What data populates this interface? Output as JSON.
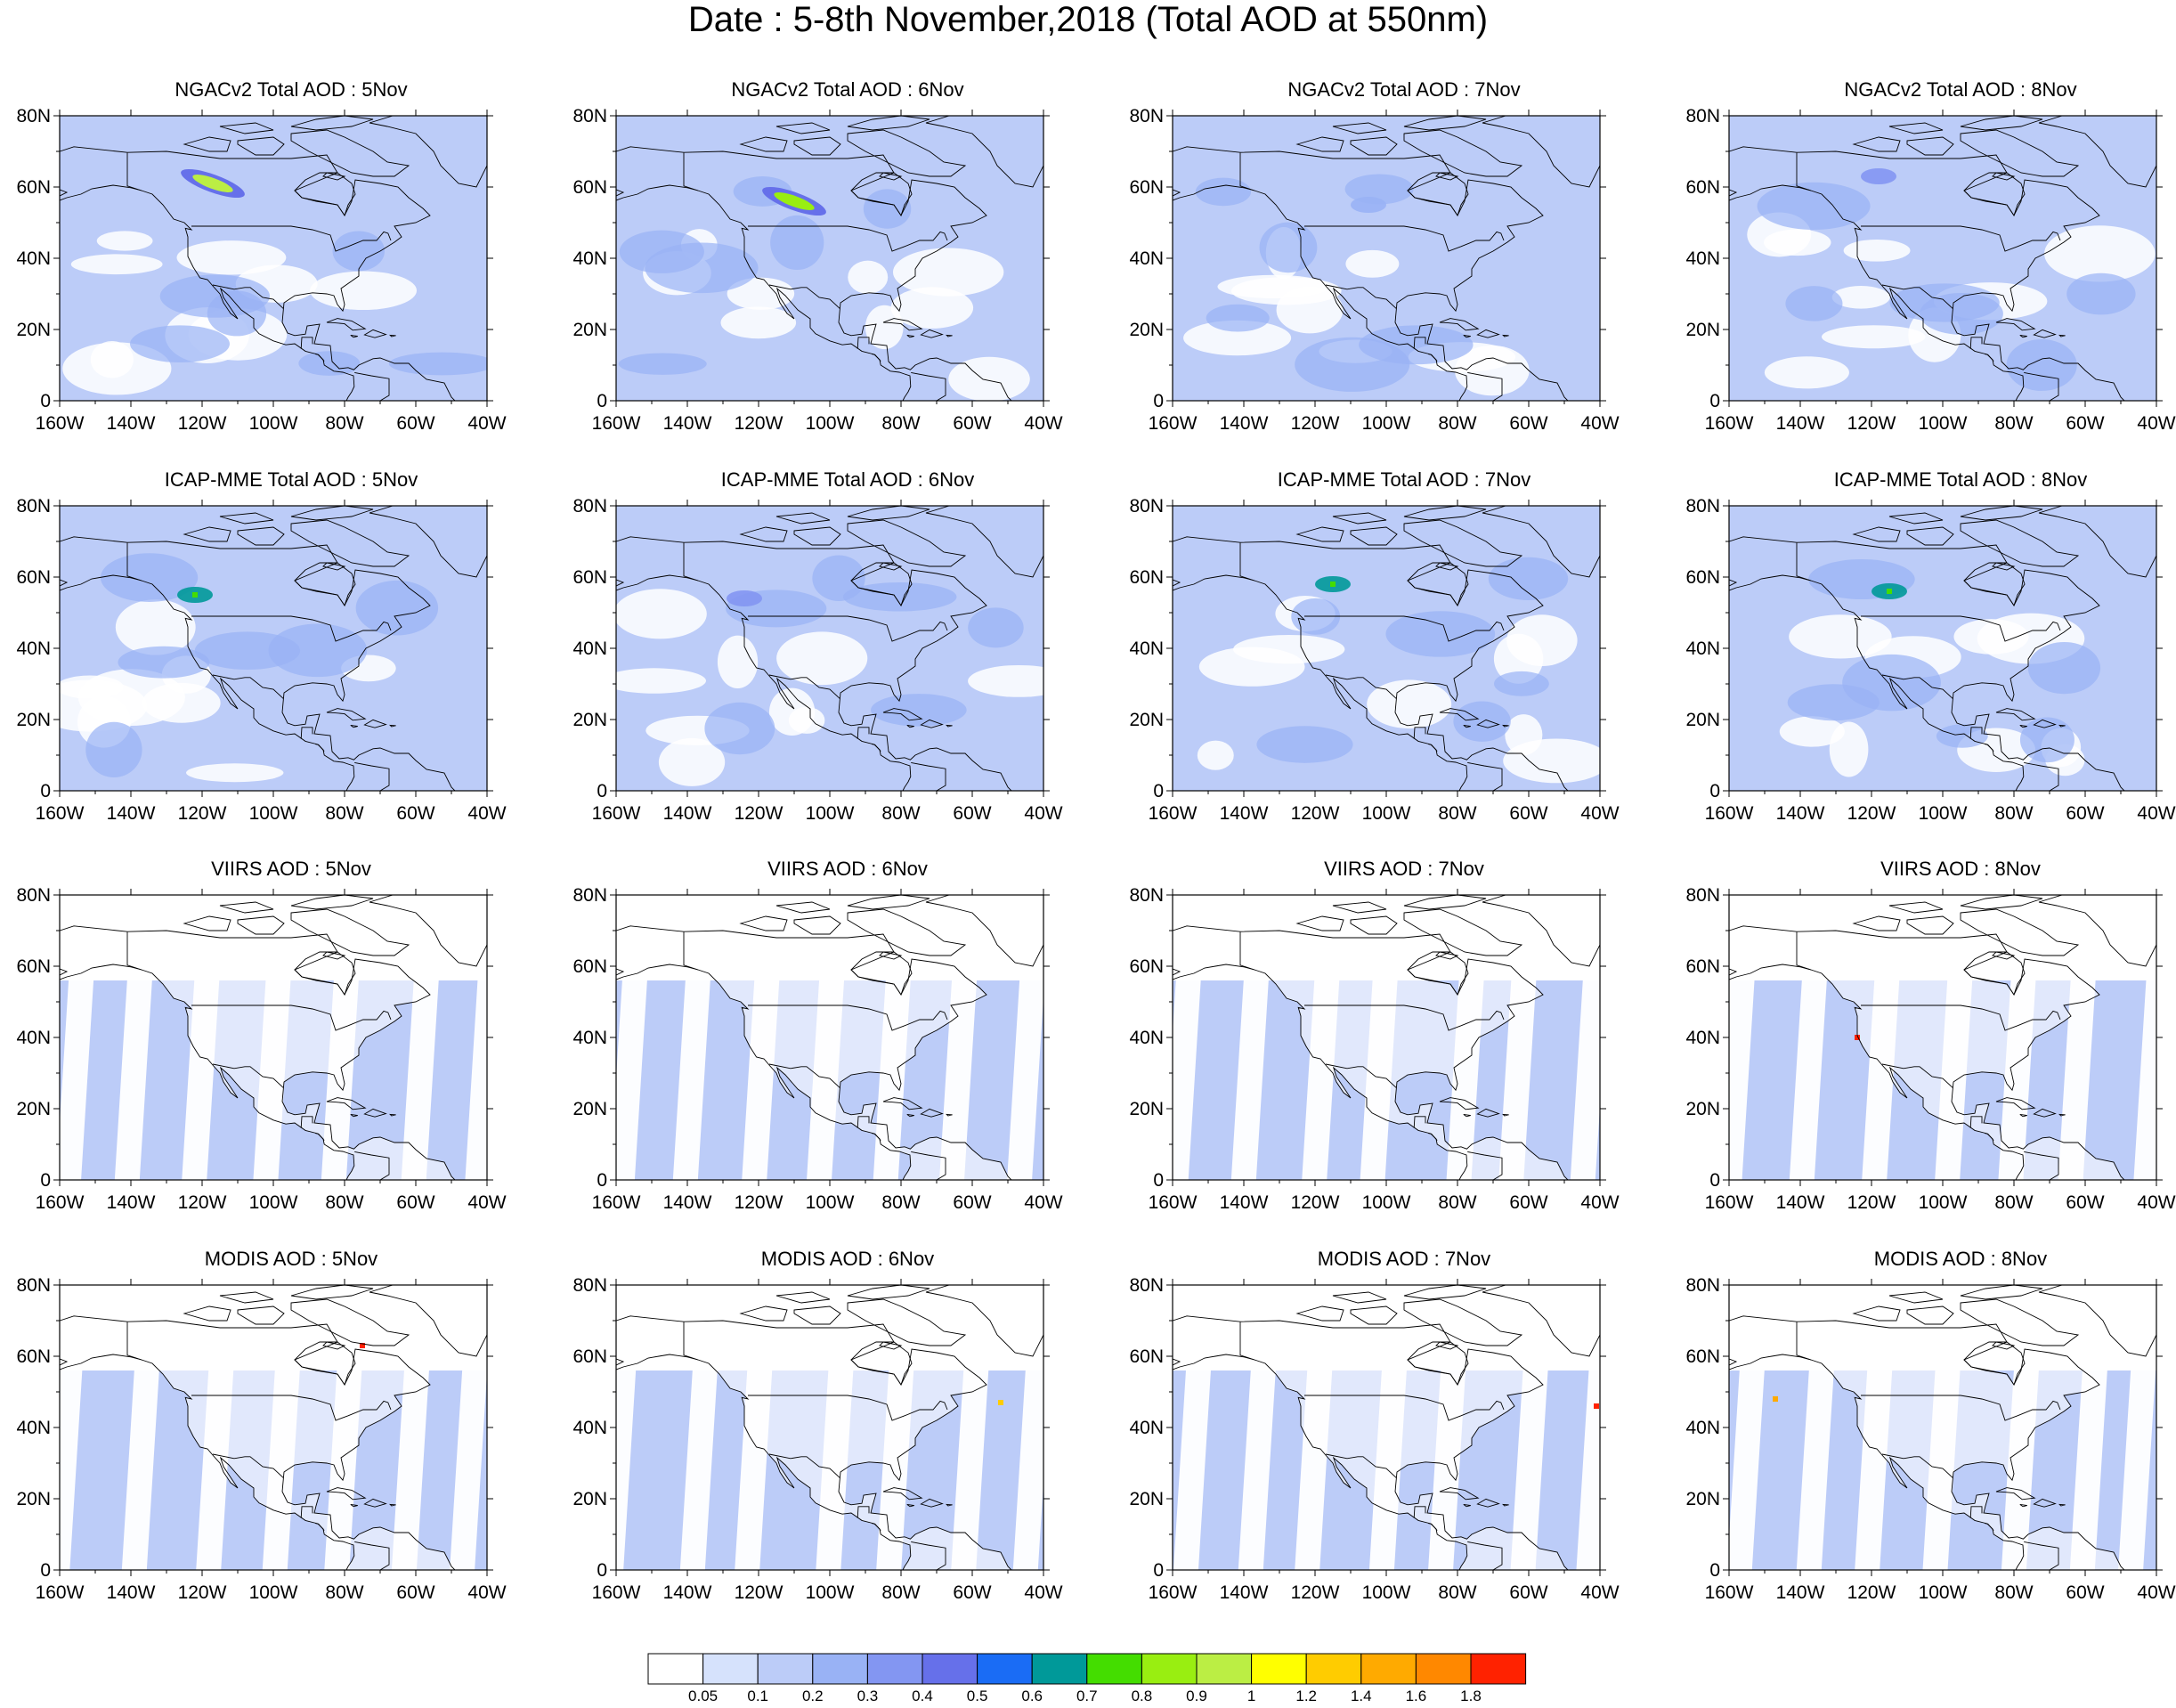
{
  "title": "Date : 5-8th November,2018 (Total AOD at 550nm)",
  "colors": {
    "levels": [
      "#ffffff",
      "#d6e2fc",
      "#bcccf8",
      "#99b2f5",
      "#8396f2",
      "#6670ea",
      "#1a6cf5",
      "#009999",
      "#44dd00",
      "#99ee11",
      "#bbee44",
      "#ffff00",
      "#ffcc00",
      "#ffaa00",
      "#ff8800",
      "#ff2200"
    ],
    "land_outline": "#000000"
  },
  "chart_data": [
    {
      "type": "heatmap",
      "title": "NGACv2 Total AOD : 5Nov",
      "x_ticks": [
        "160W",
        "140W",
        "120W",
        "100W",
        "80W",
        "60W",
        "40W"
      ],
      "y_ticks": [
        "0",
        "20N",
        "40N",
        "60N",
        "80N"
      ],
      "xlim": [
        -160,
        -40
      ],
      "ylim": [
        0,
        80
      ],
      "plumes": [
        {
          "lon": -117,
          "lat": 61,
          "aod": 0.9
        }
      ],
      "background_aod": 0.1,
      "stripes": false
    },
    {
      "type": "heatmap",
      "title": "NGACv2 Total AOD : 6Nov",
      "x_ticks": [
        "160W",
        "140W",
        "120W",
        "100W",
        "80W",
        "60W",
        "40W"
      ],
      "y_ticks": [
        "0",
        "20N",
        "40N",
        "60N",
        "80N"
      ],
      "xlim": [
        -160,
        -40
      ],
      "ylim": [
        0,
        80
      ],
      "plumes": [
        {
          "lon": -110,
          "lat": 56,
          "aod": 0.8
        }
      ],
      "background_aod": 0.1,
      "stripes": false
    },
    {
      "type": "heatmap",
      "title": "NGACv2 Total AOD : 7Nov",
      "x_ticks": [
        "160W",
        "140W",
        "120W",
        "100W",
        "80W",
        "60W",
        "40W"
      ],
      "y_ticks": [
        "0",
        "20N",
        "40N",
        "60N",
        "80N"
      ],
      "xlim": [
        -160,
        -40
      ],
      "ylim": [
        0,
        80
      ],
      "plumes": [
        {
          "lon": -105,
          "lat": 55,
          "aod": 0.2
        }
      ],
      "background_aod": 0.1,
      "stripes": false
    },
    {
      "type": "heatmap",
      "title": "NGACv2 Total AOD : 8Nov",
      "x_ticks": [
        "160W",
        "140W",
        "120W",
        "100W",
        "80W",
        "60W",
        "40W"
      ],
      "y_ticks": [
        "0",
        "20N",
        "40N",
        "60N",
        "80N"
      ],
      "xlim": [
        -160,
        -40
      ],
      "ylim": [
        0,
        80
      ],
      "plumes": [
        {
          "lon": -118,
          "lat": 63,
          "aod": 0.3
        }
      ],
      "background_aod": 0.1,
      "stripes": false
    },
    {
      "type": "heatmap",
      "title": "ICAP-MME Total AOD : 5Nov",
      "x_ticks": [
        "160W",
        "140W",
        "120W",
        "100W",
        "80W",
        "60W",
        "40W"
      ],
      "y_ticks": [
        "0",
        "20N",
        "40N",
        "60N",
        "80N"
      ],
      "xlim": [
        -160,
        -40
      ],
      "ylim": [
        0,
        80
      ],
      "plumes": [
        {
          "lon": -122,
          "lat": 55,
          "aod": 0.6
        }
      ],
      "background_aod": 0.1,
      "stripes": false
    },
    {
      "type": "heatmap",
      "title": "ICAP-MME Total AOD : 6Nov",
      "x_ticks": [
        "160W",
        "140W",
        "120W",
        "100W",
        "80W",
        "60W",
        "40W"
      ],
      "y_ticks": [
        "0",
        "20N",
        "40N",
        "60N",
        "80N"
      ],
      "xlim": [
        -160,
        -40
      ],
      "ylim": [
        0,
        80
      ],
      "plumes": [
        {
          "lon": -124,
          "lat": 54,
          "aod": 0.3
        }
      ],
      "background_aod": 0.1,
      "stripes": false
    },
    {
      "type": "heatmap",
      "title": "ICAP-MME Total AOD : 7Nov",
      "x_ticks": [
        "160W",
        "140W",
        "120W",
        "100W",
        "80W",
        "60W",
        "40W"
      ],
      "y_ticks": [
        "0",
        "20N",
        "40N",
        "60N",
        "80N"
      ],
      "xlim": [
        -160,
        -40
      ],
      "ylim": [
        0,
        80
      ],
      "plumes": [
        {
          "lon": -115,
          "lat": 58,
          "aod": 0.6
        }
      ],
      "background_aod": 0.1,
      "stripes": false
    },
    {
      "type": "heatmap",
      "title": "ICAP-MME Total AOD : 8Nov",
      "x_ticks": [
        "160W",
        "140W",
        "120W",
        "100W",
        "80W",
        "60W",
        "40W"
      ],
      "y_ticks": [
        "0",
        "20N",
        "40N",
        "60N",
        "80N"
      ],
      "xlim": [
        -160,
        -40
      ],
      "ylim": [
        0,
        80
      ],
      "plumes": [
        {
          "lon": -115,
          "lat": 56,
          "aod": 0.6
        }
      ],
      "background_aod": 0.1,
      "stripes": false
    },
    {
      "type": "heatmap",
      "title": "VIIRS AOD : 5Nov",
      "x_ticks": [
        "160W",
        "140W",
        "120W",
        "100W",
        "80W",
        "60W",
        "40W"
      ],
      "y_ticks": [
        "0",
        "20N",
        "40N",
        "60N",
        "80N"
      ],
      "xlim": [
        -160,
        -40
      ],
      "ylim": [
        0,
        80
      ],
      "plumes": [],
      "background_aod": 0.1,
      "stripes": true
    },
    {
      "type": "heatmap",
      "title": "VIIRS AOD : 6Nov",
      "x_ticks": [
        "160W",
        "140W",
        "120W",
        "100W",
        "80W",
        "60W",
        "40W"
      ],
      "y_ticks": [
        "0",
        "20N",
        "40N",
        "60N",
        "80N"
      ],
      "xlim": [
        -160,
        -40
      ],
      "ylim": [
        0,
        80
      ],
      "plumes": [],
      "background_aod": 0.1,
      "stripes": true
    },
    {
      "type": "heatmap",
      "title": "VIIRS AOD : 7Nov",
      "x_ticks": [
        "160W",
        "140W",
        "120W",
        "100W",
        "80W",
        "60W",
        "40W"
      ],
      "y_ticks": [
        "0",
        "20N",
        "40N",
        "60N",
        "80N"
      ],
      "xlim": [
        -160,
        -40
      ],
      "ylim": [
        0,
        80
      ],
      "plumes": [],
      "background_aod": 0.1,
      "stripes": true
    },
    {
      "type": "heatmap",
      "title": "VIIRS AOD : 8Nov",
      "x_ticks": [
        "160W",
        "140W",
        "120W",
        "100W",
        "80W",
        "60W",
        "40W"
      ],
      "y_ticks": [
        "0",
        "20N",
        "40N",
        "60N",
        "80N"
      ],
      "xlim": [
        -160,
        -40
      ],
      "ylim": [
        0,
        80
      ],
      "plumes": [
        {
          "lon": -124,
          "lat": 40,
          "aod": 1.8
        }
      ],
      "background_aod": 0.1,
      "stripes": true
    },
    {
      "type": "heatmap",
      "title": "MODIS AOD : 5Nov",
      "x_ticks": [
        "160W",
        "140W",
        "120W",
        "100W",
        "80W",
        "60W",
        "40W"
      ],
      "y_ticks": [
        "0",
        "20N",
        "40N",
        "60N",
        "80N"
      ],
      "xlim": [
        -160,
        -40
      ],
      "ylim": [
        0,
        80
      ],
      "plumes": [
        {
          "lon": -75,
          "lat": 63,
          "aod": 1.8
        }
      ],
      "background_aod": 0.1,
      "stripes": true
    },
    {
      "type": "heatmap",
      "title": "MODIS AOD : 6Nov",
      "x_ticks": [
        "160W",
        "140W",
        "120W",
        "100W",
        "80W",
        "60W",
        "40W"
      ],
      "y_ticks": [
        "0",
        "20N",
        "40N",
        "60N",
        "80N"
      ],
      "xlim": [
        -160,
        -40
      ],
      "ylim": [
        0,
        80
      ],
      "plumes": [
        {
          "lon": -52,
          "lat": 47,
          "aod": 1.2
        }
      ],
      "background_aod": 0.1,
      "stripes": true
    },
    {
      "type": "heatmap",
      "title": "MODIS AOD : 7Nov",
      "x_ticks": [
        "160W",
        "140W",
        "120W",
        "100W",
        "80W",
        "60W",
        "40W"
      ],
      "y_ticks": [
        "0",
        "20N",
        "40N",
        "60N",
        "80N"
      ],
      "xlim": [
        -160,
        -40
      ],
      "ylim": [
        0,
        80
      ],
      "plumes": [
        {
          "lon": -41,
          "lat": 46,
          "aod": 1.8
        }
      ],
      "background_aod": 0.1,
      "stripes": true
    },
    {
      "type": "heatmap",
      "title": "MODIS AOD : 8Nov",
      "x_ticks": [
        "160W",
        "140W",
        "120W",
        "100W",
        "80W",
        "60W",
        "40W"
      ],
      "y_ticks": [
        "0",
        "20N",
        "40N",
        "60N",
        "80N"
      ],
      "xlim": [
        -160,
        -40
      ],
      "ylim": [
        0,
        80
      ],
      "plumes": [
        {
          "lon": -147,
          "lat": 48,
          "aod": 1.4
        }
      ],
      "background_aod": 0.1,
      "stripes": true
    }
  ],
  "colorbar": {
    "labels": [
      "0.05",
      "0.1",
      "0.2",
      "0.3",
      "0.4",
      "0.5",
      "0.6",
      "0.7",
      "0.8",
      "0.9",
      "1",
      "1.2",
      "1.4",
      "1.6",
      "1.8"
    ]
  }
}
